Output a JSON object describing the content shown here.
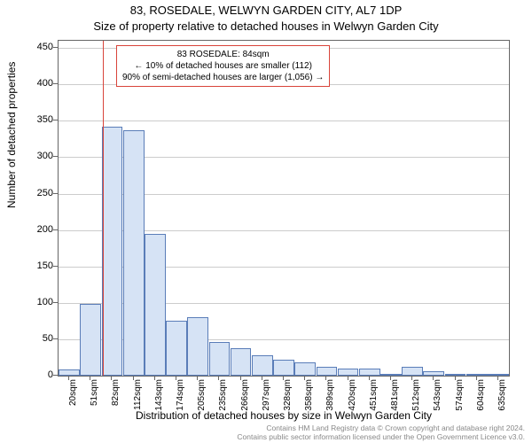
{
  "titles": {
    "line1": "83, ROSEDALE, WELWYN GARDEN CITY, AL7 1DP",
    "line2": "Size of property relative to detached houses in Welwyn Garden City"
  },
  "axes": {
    "ylabel": "Number of detached properties",
    "xlabel": "Distribution of detached houses by size in Welwyn Garden City",
    "ylim": [
      0,
      460
    ],
    "yticks": [
      0,
      50,
      100,
      150,
      200,
      250,
      300,
      350,
      400,
      450
    ],
    "grid_color": "#cccccc",
    "axis_color": "#666666",
    "background": "#ffffff",
    "label_fontsize": 12,
    "tick_fontsize": 11
  },
  "chart": {
    "type": "histogram",
    "bar_fill": "#d6e3f5",
    "bar_stroke": "#5a7db8",
    "categories": [
      "20sqm",
      "51sqm",
      "82sqm",
      "112sqm",
      "143sqm",
      "174sqm",
      "205sqm",
      "235sqm",
      "266sqm",
      "297sqm",
      "328sqm",
      "358sqm",
      "389sqm",
      "420sqm",
      "451sqm",
      "481sqm",
      "512sqm",
      "543sqm",
      "574sqm",
      "604sqm",
      "635sqm"
    ],
    "values": [
      8,
      98,
      342,
      337,
      195,
      76,
      80,
      46,
      38,
      28,
      22,
      18,
      12,
      10,
      10,
      2,
      12,
      6,
      3,
      2,
      2
    ]
  },
  "marker": {
    "value_sqm": 84,
    "color": "#d9443a"
  },
  "annotation": {
    "border_color": "#d9443a",
    "line1": "83 ROSEDALE: 84sqm",
    "line2": "← 10% of detached houses are smaller (112)",
    "line3": "90% of semi-detached houses are larger (1,056) →"
  },
  "copyright": {
    "line1": "Contains HM Land Registry data © Crown copyright and database right 2024.",
    "line2": "Contains public sector information licensed under the Open Government Licence v3.0."
  }
}
